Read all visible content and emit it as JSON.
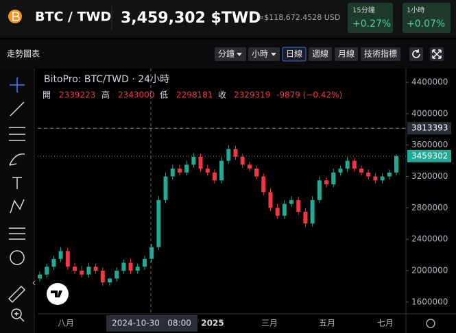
{
  "header": {
    "pair": "BTC / TWD",
    "price": "3,459,302 $TWD",
    "usd": "≈$118,672.4528 USD",
    "changes": [
      {
        "label": "15分鐘",
        "value": "+0.27%"
      },
      {
        "label": "1小時",
        "value": "+0.07%"
      }
    ]
  },
  "toolbar": {
    "title": "走勢圖表",
    "buttons": [
      "分鐘",
      "小時",
      "日線",
      "週線",
      "月線",
      "技術指標"
    ]
  },
  "chart_data": {
    "type": "candlestick",
    "title": "BitoPro: BTC/TWD · 24小時",
    "ohlc_labels": [
      "開",
      "高",
      "低",
      "收"
    ],
    "ohlc_values": [
      2339223,
      2343000,
      2298181,
      2329319
    ],
    "change": "-9879 (−0.42%)",
    "x_labels": [
      "八月",
      "2024-10-30   08:00",
      "2025",
      "三月",
      "五月",
      "七月"
    ],
    "open": [
      1900000,
      1950000,
      2050000,
      2150000,
      2250000,
      2050000,
      2000000,
      1950000,
      2050000,
      2000000,
      1850000,
      1900000,
      2000000,
      2100000,
      2000000,
      2050000,
      2150000,
      2300000,
      2900000,
      3200000,
      3300000,
      3250000,
      3350000,
      3450000,
      3300000,
      3250000,
      3150000,
      3400000,
      3550000,
      3450000,
      3350000,
      3300000,
      3200000,
      3000000,
      2800000,
      2700000,
      2850000,
      2900000,
      2750000,
      2600000,
      2900000,
      3150000,
      3100000,
      3250000,
      3300000,
      3400000,
      3300000,
      3250000,
      3200000,
      3150000,
      3200000,
      3250000
    ],
    "high": [
      1990000,
      2090000,
      2190000,
      2300000,
      2290000,
      2100000,
      2060000,
      2100000,
      2090000,
      2040000,
      1910000,
      2040000,
      2140000,
      2150000,
      2090000,
      2190000,
      2340000,
      2950000,
      3250000,
      3350000,
      3350000,
      3400000,
      3500000,
      3490000,
      3350000,
      3290000,
      3450000,
      3600000,
      3590000,
      3490000,
      3390000,
      3340000,
      3240000,
      3050000,
      2850000,
      2900000,
      2950000,
      2940000,
      2790000,
      2950000,
      3200000,
      3190000,
      3300000,
      3340000,
      3450000,
      3440000,
      3340000,
      3290000,
      3240000,
      3240000,
      3290000,
      3480000
    ],
    "low": [
      1860000,
      1910000,
      2010000,
      2110000,
      2010000,
      1960000,
      1910000,
      1910000,
      1960000,
      1810000,
      1810000,
      1860000,
      1960000,
      1960000,
      1960000,
      2010000,
      2110000,
      2260000,
      2860000,
      3160000,
      3210000,
      3210000,
      3310000,
      3260000,
      3210000,
      3110000,
      3110000,
      3360000,
      3410000,
      3310000,
      3260000,
      3160000,
      2960000,
      2760000,
      2660000,
      2660000,
      2810000,
      2710000,
      2560000,
      2560000,
      2860000,
      3060000,
      3060000,
      3210000,
      3260000,
      3260000,
      3210000,
      3160000,
      3110000,
      3110000,
      3160000,
      3210000
    ],
    "close": [
      1950000,
      2050000,
      2150000,
      2250000,
      2050000,
      2000000,
      1950000,
      2050000,
      2000000,
      1850000,
      1900000,
      2000000,
      2100000,
      2000000,
      2050000,
      2150000,
      2300000,
      2900000,
      3200000,
      3300000,
      3250000,
      3350000,
      3450000,
      3300000,
      3250000,
      3150000,
      3400000,
      3550000,
      3450000,
      3350000,
      3300000,
      3200000,
      3000000,
      2800000,
      2700000,
      2850000,
      2900000,
      2750000,
      2600000,
      2900000,
      3150000,
      3100000,
      3250000,
      3300000,
      3400000,
      3300000,
      3250000,
      3200000,
      3150000,
      3200000,
      3250000,
      3459302
    ],
    "up_color": "#22ab94",
    "down_color": "#f23645",
    "ylim": [
      1450000,
      4575000
    ],
    "yticks": [
      1600000,
      2000000,
      2400000,
      2800000,
      3200000,
      3600000,
      4000000,
      4400000
    ],
    "high_line": 3813393,
    "last_price": 3459302
  }
}
